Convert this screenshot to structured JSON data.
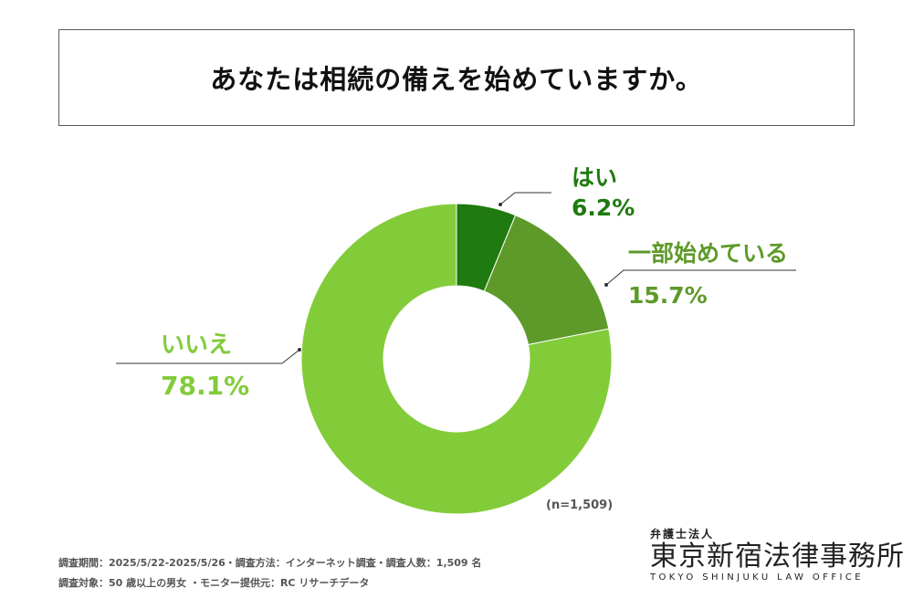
{
  "title": "あなたは相続の備えを始めていますか。",
  "chart_data": {
    "type": "pie",
    "donut": true,
    "labels": [
      "はい",
      "一部始めている",
      "いいえ"
    ],
    "values": [
      6.2,
      15.7,
      78.1
    ],
    "value_labels": [
      "6.2%",
      "15.7%",
      "78.1%"
    ],
    "colors": [
      "#1f7a0f",
      "#5e9a2a",
      "#82cc3a"
    ],
    "label_colors": [
      "#1f7a0f",
      "#5e9a2a",
      "#82cc3a"
    ],
    "sample_note": "(n=1,509)"
  },
  "footer": {
    "line1": "調査期間：2025/5/22-2025/5/26・調査方法：インターネット調査・調査人数：1,509 名",
    "line2": "調査対象：50 歳以上の男女 ・モニター提供元：RC リサーチデータ"
  },
  "logo": {
    "subtitle": "弁護士法人",
    "name": "東京新宿法律事務所",
    "english": "TOKYO SHINJUKU LAW OFFICE"
  }
}
